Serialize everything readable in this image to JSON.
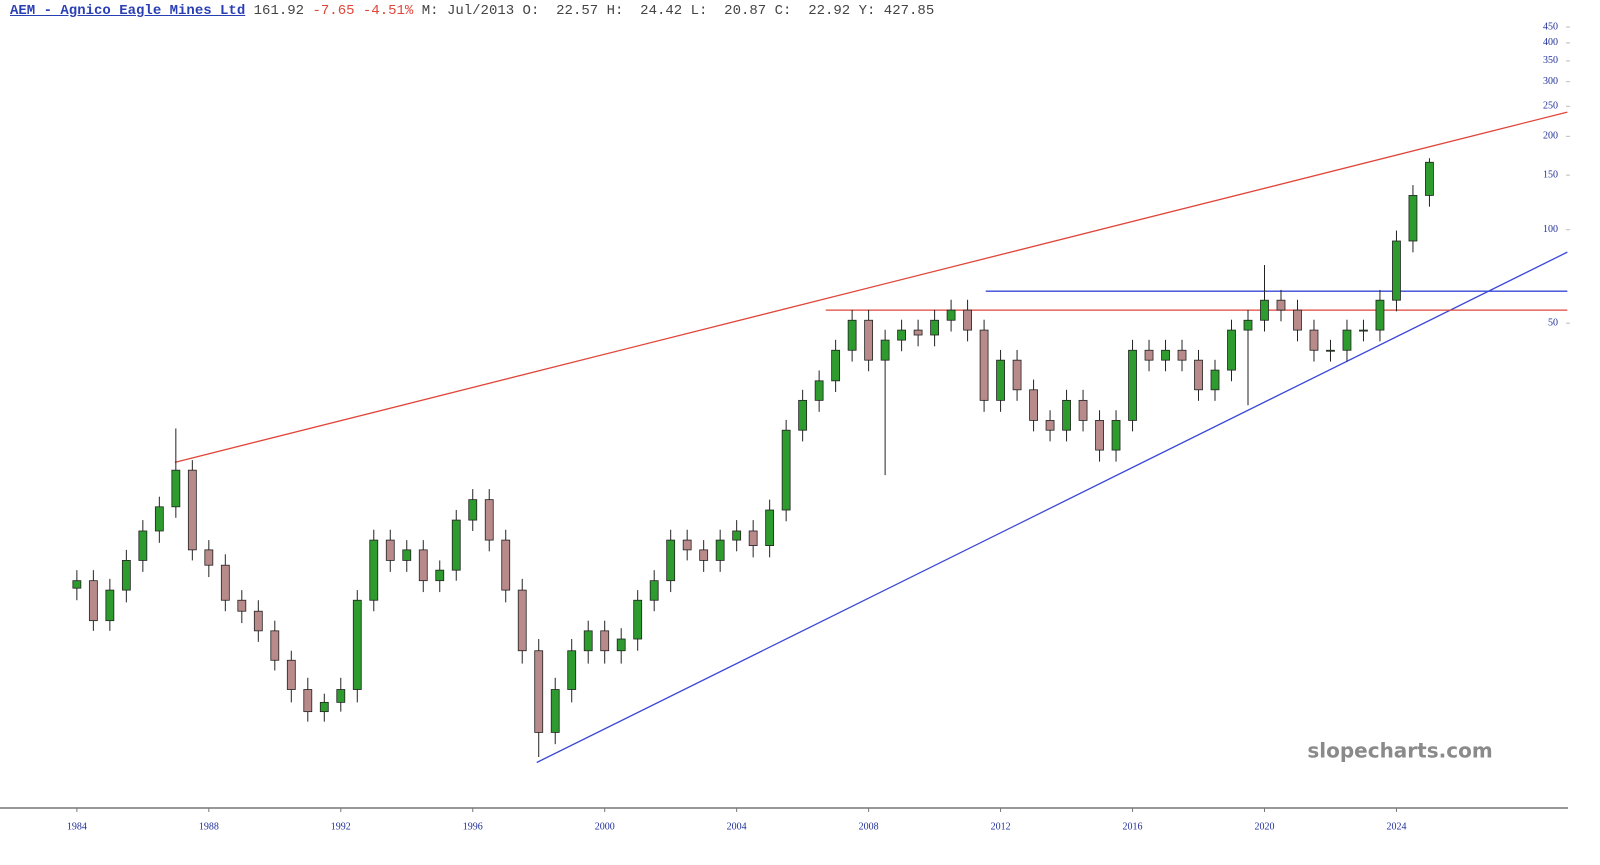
{
  "chart_data": {
    "type": "candlestick",
    "title": "AEM - Agnico Eagle Mines Ltd",
    "last": "161.92",
    "change": "-7.65",
    "change_percent": "-4.51%",
    "info": "M: Jul/2013 O:  22.57 H:  24.42 L:  20.87 C:  22.92 Y: 427.85",
    "watermark": "slopecharts.com",
    "log_y": true,
    "xlim": [
      1981.67,
      2029.2
    ],
    "ylim": [
      1.37,
      550
    ],
    "xticks": [
      1984,
      1988,
      1992,
      1996,
      2000,
      2004,
      2008,
      2012,
      2016,
      2020,
      2024
    ],
    "yticks": [
      50,
      100,
      150,
      200,
      250,
      300,
      350,
      400,
      450
    ],
    "up_color": "#2e9b2e",
    "down_color": "#b98a8a",
    "x": [
      1984.0,
      1984.5,
      1985.0,
      1985.5,
      1986.0,
      1986.5,
      1987.0,
      1987.5,
      1988.0,
      1988.5,
      1989.0,
      1989.5,
      1990.0,
      1990.5,
      1991.0,
      1991.5,
      1992.0,
      1992.5,
      1993.0,
      1993.5,
      1994.0,
      1994.5,
      1995.0,
      1995.5,
      1996.0,
      1996.5,
      1997.0,
      1997.5,
      1998.0,
      1998.5,
      1999.0,
      1999.5,
      2000.0,
      2000.5,
      2001.0,
      2001.5,
      2002.0,
      2002.5,
      2003.0,
      2003.5,
      2004.0,
      2004.5,
      2005.0,
      2005.5,
      2006.0,
      2006.5,
      2007.0,
      2007.5,
      2008.0,
      2008.5,
      2009.0,
      2009.5,
      2010.0,
      2010.5,
      2011.0,
      2011.5,
      2012.0,
      2012.5,
      2013.0,
      2013.5,
      2014.0,
      2014.5,
      2015.0,
      2015.5,
      2016.0,
      2016.5,
      2017.0,
      2017.5,
      2018.0,
      2018.5,
      2019.0,
      2019.5,
      2020.0,
      2020.5,
      2021.0,
      2021.5,
      2022.0,
      2022.5,
      2023.0,
      2023.5,
      2024.0,
      2024.5,
      2025.0
    ],
    "open": [
      7.0,
      7.4,
      5.5,
      6.9,
      8.6,
      10.7,
      12.8,
      16.8,
      9.3,
      8.3,
      6.4,
      5.9,
      5.1,
      4.1,
      3.3,
      2.8,
      3.0,
      3.3,
      6.4,
      10.0,
      8.6,
      9.3,
      7.4,
      8.0,
      11.6,
      13.5,
      10.0,
      6.9,
      4.4,
      2.4,
      3.3,
      4.4,
      5.1,
      4.4,
      4.8,
      6.4,
      7.4,
      10.0,
      9.3,
      8.6,
      10.0,
      10.7,
      9.6,
      12.5,
      22.6,
      28.2,
      32.6,
      40.9,
      51.1,
      38.0,
      44.1,
      47.5,
      45.8,
      51.1,
      55.1,
      47.5,
      28.2,
      38.0,
      30.5,
      24.3,
      22.6,
      28.2,
      24.3,
      19.5,
      24.3,
      40.9,
      38.0,
      40.9,
      38.0,
      30.5,
      35.3,
      47.5,
      51.1,
      59.3,
      55.1,
      47.5,
      40.9,
      40.9,
      47.5,
      47.5,
      59.3,
      92,
      129
    ],
    "high": [
      8.0,
      8.0,
      7.5,
      9.3,
      11.6,
      13.8,
      22.9,
      18.1,
      10.0,
      9.0,
      6.9,
      6.4,
      5.5,
      4.4,
      3.6,
      3.2,
      3.6,
      6.9,
      10.8,
      10.8,
      10.0,
      10.0,
      8.6,
      12.5,
      14.6,
      14.6,
      10.8,
      7.5,
      4.8,
      3.6,
      4.8,
      5.5,
      5.5,
      5.2,
      6.9,
      8.0,
      10.8,
      10.8,
      10.0,
      10.8,
      11.6,
      11.6,
      13.5,
      24.4,
      30.5,
      35.2,
      44.2,
      55.2,
      55.2,
      47.6,
      51.3,
      51.3,
      55.2,
      59.5,
      59.5,
      51.3,
      41.0,
      41.0,
      32.9,
      26.2,
      30.5,
      30.5,
      26.2,
      26.2,
      44.2,
      44.2,
      44.2,
      44.2,
      41.0,
      38.1,
      51.3,
      55.2,
      77.0,
      64.0,
      59.5,
      51.3,
      44.2,
      51.3,
      51.3,
      64.0,
      99.4,
      139.3,
      170
    ],
    "low": [
      6.4,
      5.1,
      5.1,
      6.3,
      7.9,
      9.8,
      11.8,
      8.6,
      7.6,
      5.9,
      5.4,
      4.7,
      3.8,
      3.0,
      2.6,
      2.6,
      2.8,
      3.0,
      5.9,
      7.9,
      7.9,
      6.8,
      6.8,
      7.4,
      10.7,
      9.2,
      6.3,
      4.0,
      2.0,
      2.2,
      3.0,
      4.0,
      4.0,
      4.0,
      4.4,
      5.9,
      6.8,
      8.6,
      7.9,
      7.9,
      9.2,
      8.8,
      8.8,
      11.5,
      20.8,
      25.9,
      30.0,
      37.6,
      35.0,
      16.2,
      40.6,
      42.1,
      42.1,
      47.0,
      43.7,
      25.9,
      25.9,
      28.1,
      22.4,
      20.8,
      20.8,
      22.4,
      17.9,
      17.9,
      22.4,
      35.0,
      35.0,
      35.0,
      28.1,
      28.1,
      32.5,
      27.2,
      47.0,
      50.7,
      43.7,
      37.6,
      37.6,
      37.6,
      43.7,
      43.7,
      54.6,
      84.6,
      118.7
    ],
    "close": [
      7.4,
      5.5,
      6.9,
      8.6,
      10.7,
      12.8,
      16.8,
      9.3,
      8.3,
      6.4,
      5.9,
      5.1,
      4.1,
      3.3,
      2.8,
      3.0,
      3.3,
      6.4,
      10.0,
      8.6,
      9.3,
      7.4,
      8.0,
      11.6,
      13.5,
      10.0,
      6.9,
      4.4,
      2.4,
      3.3,
      4.4,
      5.1,
      4.4,
      4.8,
      6.4,
      7.4,
      10.0,
      9.3,
      8.6,
      10.0,
      10.7,
      9.6,
      12.5,
      22.6,
      28.2,
      32.6,
      40.9,
      51.1,
      38.0,
      44.1,
      47.5,
      45.8,
      51.1,
      55.1,
      47.5,
      28.2,
      38.0,
      30.5,
      24.3,
      22.6,
      28.2,
      24.3,
      19.5,
      24.3,
      40.9,
      38.0,
      40.9,
      38.0,
      30.5,
      35.3,
      47.5,
      51.1,
      59.3,
      55.1,
      47.5,
      40.9,
      40.9,
      47.5,
      47.5,
      59.3,
      92,
      129,
      165
    ],
    "lines": [
      {
        "color": "#e0453a",
        "x": [
          1986.97,
          2029.18
        ],
        "y": [
          17.8,
          239.4
        ]
      },
      {
        "color": "#3a48d8",
        "x": [
          1997.94,
          2029.18
        ],
        "y": [
          1.92,
          84.7
        ]
      },
      {
        "color": "#e0453a",
        "x": [
          2006.7,
          2029.18
        ],
        "y": [
          55.1,
          55.1
        ]
      },
      {
        "color": "#3a48d8",
        "x": [
          2011.55,
          2029.18
        ],
        "y": [
          63.4,
          63.4
        ]
      }
    ]
  }
}
